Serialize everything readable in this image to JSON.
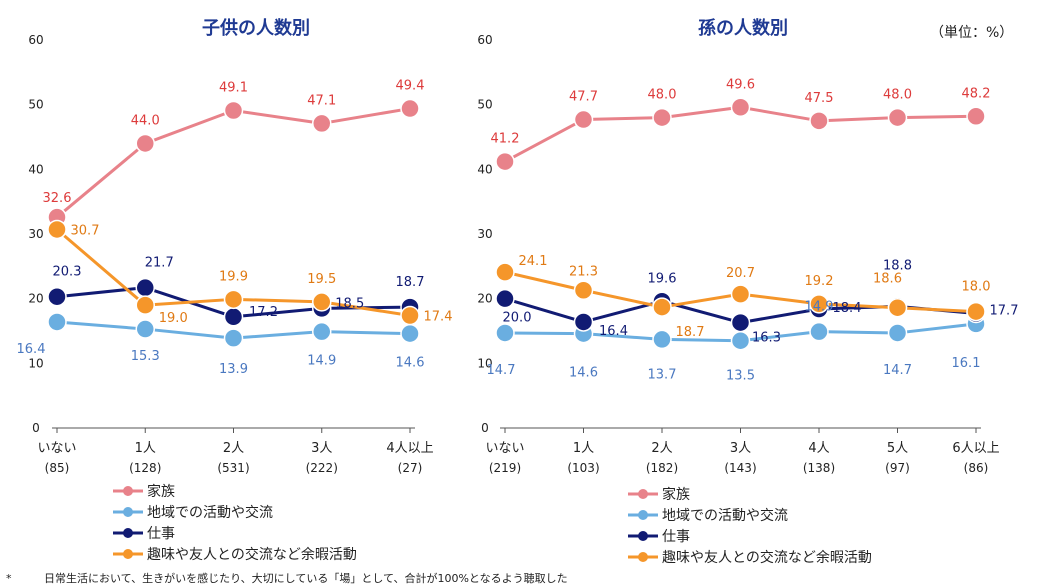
{
  "unit_note": "（単位：%）",
  "footnote": {
    "mark": "*",
    "text": "日常生活において、生きがいを感じたり、大切にしている「場」として、合計が100%となるよう聴取した"
  },
  "series_styles": [
    {
      "name": "家族",
      "color": "#E8828A"
    },
    {
      "name": "地域での活動や交流",
      "color": "#6AAEE0"
    },
    {
      "name": "仕事",
      "color": "#111B73"
    },
    {
      "name": "趣味や友人との交流など余暇活動",
      "color": "#F5962A"
    }
  ],
  "label_colors": [
    "#DD3B3B",
    "#4A78C0",
    "#111B73",
    "#E07A14"
  ],
  "chart_data": [
    {
      "type": "line",
      "title": "子供の人数別",
      "ylim": [
        0,
        60
      ],
      "yticks": [
        "0",
        "10",
        "20",
        "30",
        "40",
        "50",
        "60"
      ],
      "categories": [
        "いない",
        "1人",
        "2人",
        "3人",
        "4人以上"
      ],
      "counts": [
        "(85)",
        "(128)",
        "(531)",
        "(222)",
        "(27)"
      ],
      "series": [
        {
          "name": "家族",
          "values": [
            32.6,
            44.0,
            49.1,
            47.1,
            49.4
          ],
          "labels": [
            "32.6",
            "44.0",
            "49.1",
            "47.1",
            "49.4"
          ]
        },
        {
          "name": "地域での活動や交流",
          "values": [
            16.4,
            15.3,
            13.9,
            14.9,
            14.6
          ],
          "labels": [
            "16.4",
            "15.3",
            "13.9",
            "14.9",
            "14.6"
          ]
        },
        {
          "name": "仕事",
          "values": [
            20.3,
            21.7,
            17.2,
            18.5,
            18.7
          ],
          "labels": [
            "20.3",
            "21.7",
            "17.2",
            "18.5",
            "18.7"
          ]
        },
        {
          "name": "趣味や友人との交流など余暇活動",
          "values": [
            30.7,
            19.0,
            19.9,
            19.5,
            17.4
          ],
          "labels": [
            "30.7",
            "19.0",
            "19.9",
            "19.5",
            "17.4"
          ]
        }
      ]
    },
    {
      "type": "line",
      "title": "孫の人数別",
      "ylim": [
        0,
        60
      ],
      "yticks": [
        "0",
        "10",
        "20",
        "30",
        "40",
        "50",
        "60"
      ],
      "categories": [
        "いない",
        "1人",
        "2人",
        "3人",
        "4人",
        "5人",
        "6人以上"
      ],
      "counts": [
        "(219)",
        "(103)",
        "(182)",
        "(143)",
        "(138)",
        "(97)",
        "(86)"
      ],
      "series": [
        {
          "name": "家族",
          "values": [
            41.2,
            47.7,
            48.0,
            49.6,
            47.5,
            48.0,
            48.2
          ],
          "labels": [
            "41.2",
            "47.7",
            "48.0",
            "49.6",
            "47.5",
            "48.0",
            "48.2"
          ]
        },
        {
          "name": "地域での活動や交流",
          "values": [
            14.7,
            14.6,
            13.7,
            13.5,
            14.9,
            14.7,
            16.1
          ],
          "labels": [
            "14.7",
            "14.6",
            "13.7",
            "13.5",
            "14.9",
            "14.7",
            "16.1"
          ]
        },
        {
          "name": "仕事",
          "values": [
            20.0,
            16.4,
            19.6,
            16.3,
            18.4,
            18.8,
            17.7
          ],
          "labels": [
            "20.0",
            "16.4",
            "19.6",
            "16.3",
            "18.4",
            "18.8",
            "17.7"
          ]
        },
        {
          "name": "趣味や友人との交流など余暇活動",
          "values": [
            24.1,
            21.3,
            18.7,
            20.7,
            19.2,
            18.6,
            18.0
          ],
          "labels": [
            "24.1",
            "21.3",
            "18.7",
            "20.7",
            "19.2",
            "18.6",
            "18.0"
          ]
        }
      ]
    }
  ]
}
